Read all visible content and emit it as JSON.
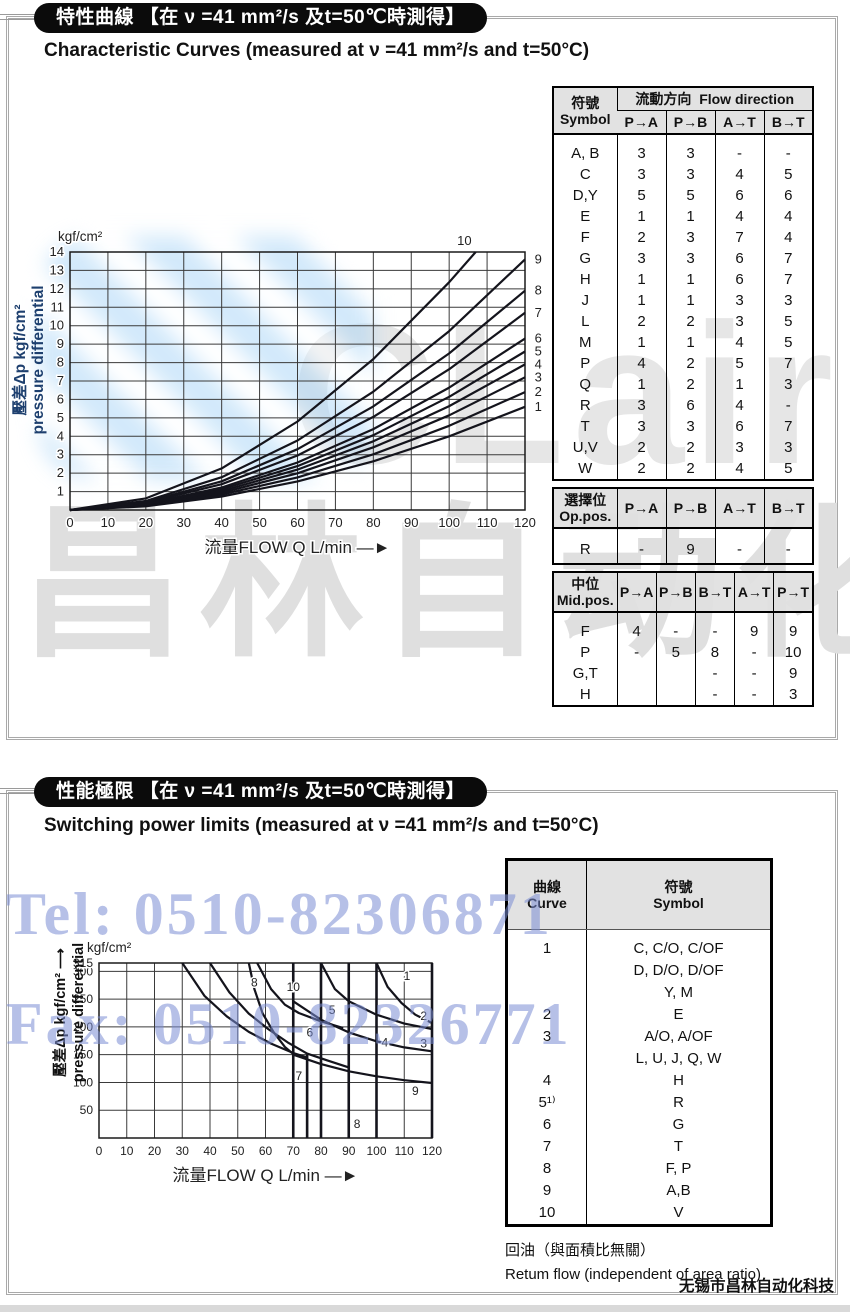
{
  "page": {
    "footer_company": "无锡市昌林自动化科技",
    "watermark": {
      "tel": "Tel: 0510-82306871",
      "fax": "Fax: 0510-82326771",
      "gray_text": "昌林自动化",
      "logo_text": "CLair",
      "blue_color": "#7a8cd4"
    }
  },
  "section1": {
    "title_zh": "特性曲線 【在 ν =41 mm²/s 及t=50℃時測得】",
    "title_en": "Characteristic Curves  (measured at ν =41 mm²/s and t=50°C)",
    "flow_table": {
      "header": {
        "symbol_zh": "符號",
        "symbol_en": "Symbol",
        "group_zh": "流動方向",
        "group_en": "Flow direction",
        "cols": [
          "P→A",
          "P→B",
          "A→T",
          "B→T"
        ]
      },
      "rows": [
        [
          "A, B",
          "3",
          "3",
          "-",
          "-"
        ],
        [
          "C",
          "3",
          "3",
          "4",
          "5"
        ],
        [
          "D,Y",
          "5",
          "5",
          "6",
          "6"
        ],
        [
          "E",
          "1",
          "1",
          "4",
          "4"
        ],
        [
          "F",
          "2",
          "3",
          "7",
          "4"
        ],
        [
          "G",
          "3",
          "3",
          "6",
          "7"
        ],
        [
          "H",
          "1",
          "1",
          "6",
          "7"
        ],
        [
          "J",
          "1",
          "1",
          "3",
          "3"
        ],
        [
          "L",
          "2",
          "2",
          "3",
          "5"
        ],
        [
          "M",
          "1",
          "1",
          "4",
          "5"
        ],
        [
          "P",
          "4",
          "2",
          "5",
          "7"
        ],
        [
          "Q",
          "1",
          "2",
          "1",
          "3"
        ],
        [
          "R",
          "3",
          "6",
          "4",
          "-"
        ],
        [
          "T",
          "3",
          "3",
          "6",
          "7"
        ],
        [
          "U,V",
          "2",
          "2",
          "3",
          "3"
        ],
        [
          "W",
          "2",
          "2",
          "4",
          "5"
        ]
      ]
    },
    "op_table": {
      "header": {
        "zh": "選擇位",
        "en": "Op.pos.",
        "cols": [
          "P→A",
          "P→B",
          "A→T",
          "B→T"
        ]
      },
      "rows": [
        [
          "R",
          "-",
          "9",
          "-",
          "-"
        ]
      ]
    },
    "mid_table": {
      "header": {
        "zh": "中位",
        "en": "Mid.pos.",
        "cols": [
          "P→A",
          "P→B",
          "B→T",
          "A→T",
          "P→T"
        ]
      },
      "rows": [
        [
          "F",
          "4",
          "-",
          "-",
          "9",
          "9"
        ],
        [
          "P",
          "-",
          "5",
          "8",
          "-",
          "10"
        ],
        [
          "G,T",
          "",
          "",
          "-",
          "-",
          "9"
        ],
        [
          "H",
          "",
          "",
          "-",
          "-",
          "3"
        ]
      ]
    },
    "ylabel_line1": "壓差Δp kgf/cm²",
    "ylabel_line2": "pressure differential"
  },
  "section2": {
    "title_zh": "性能極限 【在 ν =41 mm²/s 及t=50℃時測得】",
    "title_en": "Switching power limits  (measured at ν =41 mm²/s and t=50°C)",
    "curve_table": {
      "header": {
        "curve_zh": "曲線",
        "curve_en": "Curve",
        "symbol_zh": "符號",
        "symbol_en": "Symbol"
      },
      "rows": [
        [
          "1",
          "C, C/O, C/OF"
        ],
        [
          "",
          "D, D/O, D/OF"
        ],
        [
          "",
          "Y, M"
        ],
        [
          "2",
          "E"
        ],
        [
          "3",
          "A/O, A/OF"
        ],
        [
          "",
          "L, U, J, Q, W"
        ],
        [
          "4",
          "H"
        ],
        [
          "5¹⁾",
          "R"
        ],
        [
          "6",
          "G"
        ],
        [
          "7",
          "T"
        ],
        [
          "8",
          "F, P"
        ],
        [
          "9",
          "A,B"
        ],
        [
          "10",
          "V"
        ]
      ]
    },
    "caption_zh": "回油（與面積比無關）",
    "caption_en": "Retum flow (independent of area ratio)",
    "ylabel_line1": "壓差Δp kgf/cm² ⟶",
    "ylabel_line2": "pressure differential"
  },
  "chart_data": [
    {
      "type": "line",
      "title": "Characteristic curves: pressure differential vs flow",
      "xlabel": "流量FLOW Q L/min —►",
      "ylabel": "壓差Δp kgf/cm² pressure differential",
      "y_unit": "kgf/cm²",
      "xlim": [
        0,
        120
      ],
      "ylim": [
        0,
        14
      ],
      "grid": true,
      "tick_font": 13,
      "x_ticks": [
        0,
        10,
        20,
        30,
        40,
        50,
        60,
        70,
        80,
        90,
        100,
        110,
        120
      ],
      "y_ticks": [
        1,
        2,
        3,
        4,
        5,
        6,
        7,
        8,
        9,
        10,
        11,
        12,
        13,
        14
      ],
      "y_gridlines": [
        1,
        2,
        3,
        4,
        5,
        6,
        7,
        8,
        9,
        10,
        11,
        12,
        13,
        14
      ],
      "series": [
        {
          "label": "1",
          "label_at": [
            123.5,
            5.6
          ],
          "points": [
            [
              0,
              0
            ],
            [
              20,
              0.2
            ],
            [
              40,
              0.73
            ],
            [
              60,
              1.55
            ],
            [
              80,
              2.64
            ],
            [
              100,
              4.0
            ],
            [
              120,
              5.6
            ]
          ]
        },
        {
          "label": "2",
          "label_at": [
            123.5,
            6.4
          ],
          "points": [
            [
              0,
              0
            ],
            [
              20,
              0.23
            ],
            [
              40,
              0.84
            ],
            [
              60,
              1.77
            ],
            [
              80,
              3.02
            ],
            [
              100,
              4.57
            ],
            [
              120,
              6.4
            ]
          ]
        },
        {
          "label": "3",
          "label_at": [
            123.5,
            7.2
          ],
          "points": [
            [
              0,
              0
            ],
            [
              20,
              0.26
            ],
            [
              40,
              0.94
            ],
            [
              60,
              1.99
            ],
            [
              80,
              3.4
            ],
            [
              100,
              5.14
            ],
            [
              120,
              7.2
            ]
          ]
        },
        {
          "label": "4",
          "label_at": [
            123.5,
            7.9
          ],
          "points": [
            [
              0,
              0
            ],
            [
              20,
              0.28
            ],
            [
              40,
              1.03
            ],
            [
              60,
              2.19
            ],
            [
              80,
              3.73
            ],
            [
              100,
              5.64
            ],
            [
              120,
              7.9
            ]
          ]
        },
        {
          "label": "5",
          "label_at": [
            123.5,
            8.6
          ],
          "points": [
            [
              0,
              0
            ],
            [
              20,
              0.31
            ],
            [
              40,
              1.13
            ],
            [
              60,
              2.38
            ],
            [
              80,
              4.06
            ],
            [
              100,
              6.14
            ],
            [
              120,
              8.6
            ]
          ]
        },
        {
          "label": "6",
          "label_at": [
            123.5,
            9.3
          ],
          "points": [
            [
              0,
              0
            ],
            [
              20,
              0.33
            ],
            [
              40,
              1.22
            ],
            [
              60,
              2.58
            ],
            [
              80,
              4.39
            ],
            [
              100,
              6.64
            ],
            [
              120,
              9.3
            ]
          ]
        },
        {
          "label": "7",
          "label_at": [
            123.5,
            10.7
          ],
          "points": [
            [
              0,
              0
            ],
            [
              20,
              0.39
            ],
            [
              40,
              1.4
            ],
            [
              60,
              2.96
            ],
            [
              80,
              5.05
            ],
            [
              100,
              7.64
            ],
            [
              120,
              10.7
            ]
          ]
        },
        {
          "label": "8",
          "label_at": [
            123.5,
            11.9
          ],
          "points": [
            [
              0,
              0
            ],
            [
              20,
              0.43
            ],
            [
              40,
              1.56
            ],
            [
              60,
              3.3
            ],
            [
              80,
              5.62
            ],
            [
              100,
              8.5
            ],
            [
              120,
              11.9
            ]
          ]
        },
        {
          "label": "9",
          "label_at": [
            123.5,
            13.6
          ],
          "points": [
            [
              0,
              0
            ],
            [
              20,
              0.49
            ],
            [
              40,
              1.78
            ],
            [
              60,
              3.77
            ],
            [
              80,
              6.42
            ],
            [
              100,
              9.71
            ],
            [
              120,
              13.6
            ]
          ]
        },
        {
          "label": "10",
          "label_at": [
            104,
            14.6
          ],
          "points": [
            [
              0,
              0
            ],
            [
              20,
              0.63
            ],
            [
              40,
              2.26
            ],
            [
              60,
              4.8
            ],
            [
              80,
              8.19
            ],
            [
              100,
              12.36
            ],
            [
              107,
              14
            ]
          ]
        }
      ]
    },
    {
      "type": "line",
      "title": "Switching power limits: pressure differential vs flow",
      "xlabel": "流量FLOW Q L/min —►",
      "ylabel": "壓差Δp kgf/cm² pressure differential",
      "y_unit": "kgf/cm²",
      "xlim": [
        0,
        120
      ],
      "ylim": [
        0,
        315
      ],
      "grid": true,
      "tick_font": 12,
      "x_ticks": [
        0,
        10,
        20,
        30,
        40,
        50,
        60,
        70,
        80,
        90,
        100,
        110,
        120
      ],
      "y_ticks": [
        50,
        100,
        150,
        200,
        250,
        300,
        315
      ],
      "y_gridlines": [
        50,
        100,
        150,
        200,
        250,
        300
      ],
      "limit_lines": [
        {
          "x": 70,
          "from": 315,
          "to": 0
        },
        {
          "x": 75,
          "from": 150,
          "to": 0
        },
        {
          "x": 80,
          "from": 315,
          "to": 0
        },
        {
          "x": 90,
          "from": 315,
          "to": 0
        },
        {
          "x": 100,
          "from": 315,
          "to": 0
        },
        {
          "x": 120,
          "from": 315,
          "to": 0
        }
      ],
      "series": [
        {
          "points": [
            [
              30,
              315
            ],
            [
              38,
              256
            ],
            [
              46,
              219
            ],
            [
              54,
              191
            ],
            [
              62,
              170
            ],
            [
              70,
              153
            ],
            [
              75,
              145
            ]
          ]
        },
        {
          "points": [
            [
              40,
              315
            ],
            [
              47,
              262
            ],
            [
              54,
              224
            ],
            [
              61,
              196
            ],
            [
              68,
              172
            ],
            [
              75,
              152
            ],
            [
              82,
              140
            ],
            [
              90,
              127
            ]
          ]
        },
        {
          "points": [
            [
              54,
              315
            ],
            [
              56,
              268
            ],
            [
              59,
              224
            ],
            [
              63,
              190
            ],
            [
              67,
              164
            ],
            [
              70,
              151
            ]
          ]
        },
        {
          "points": [
            [
              70,
              150
            ],
            [
              80,
              133
            ],
            [
              90,
              120
            ],
            [
              100,
              111
            ],
            [
              110,
              104
            ],
            [
              120,
              99
            ]
          ]
        },
        {
          "points": [
            [
              57,
              315
            ],
            [
              62,
              268
            ],
            [
              67,
              240
            ],
            [
              72,
              225
            ],
            [
              80,
              210
            ],
            [
              88,
              198
            ]
          ]
        },
        {
          "points": [
            [
              100,
              315
            ],
            [
              104,
              272
            ],
            [
              109,
              243
            ],
            [
              114,
              222
            ],
            [
              120,
              207
            ]
          ]
        },
        {
          "points": [
            [
              80,
              315
            ],
            [
              85,
              268
            ],
            [
              90,
              246
            ],
            [
              100,
              222
            ],
            [
              110,
              206
            ],
            [
              120,
              196
            ]
          ]
        },
        {
          "points": [
            [
              70,
              246
            ],
            [
              80,
              213
            ],
            [
              90,
              190
            ],
            [
              100,
              174
            ],
            [
              110,
              163
            ],
            [
              120,
              156
            ]
          ]
        }
      ],
      "labels": [
        {
          "text": "8",
          "x": 56,
          "y": 280
        },
        {
          "text": "10",
          "x": 70,
          "y": 272
        },
        {
          "text": "5",
          "x": 84,
          "y": 230
        },
        {
          "text": "6",
          "x": 76,
          "y": 190
        },
        {
          "text": "1",
          "x": 111,
          "y": 292
        },
        {
          "text": "2",
          "x": 117,
          "y": 220
        },
        {
          "text": "3",
          "x": 117,
          "y": 170
        },
        {
          "text": "4",
          "x": 103,
          "y": 172
        },
        {
          "text": "7",
          "x": 72,
          "y": 112
        },
        {
          "text": "9",
          "x": 114,
          "y": 85
        },
        {
          "text": "8",
          "x": 93,
          "y": 25
        }
      ]
    }
  ]
}
